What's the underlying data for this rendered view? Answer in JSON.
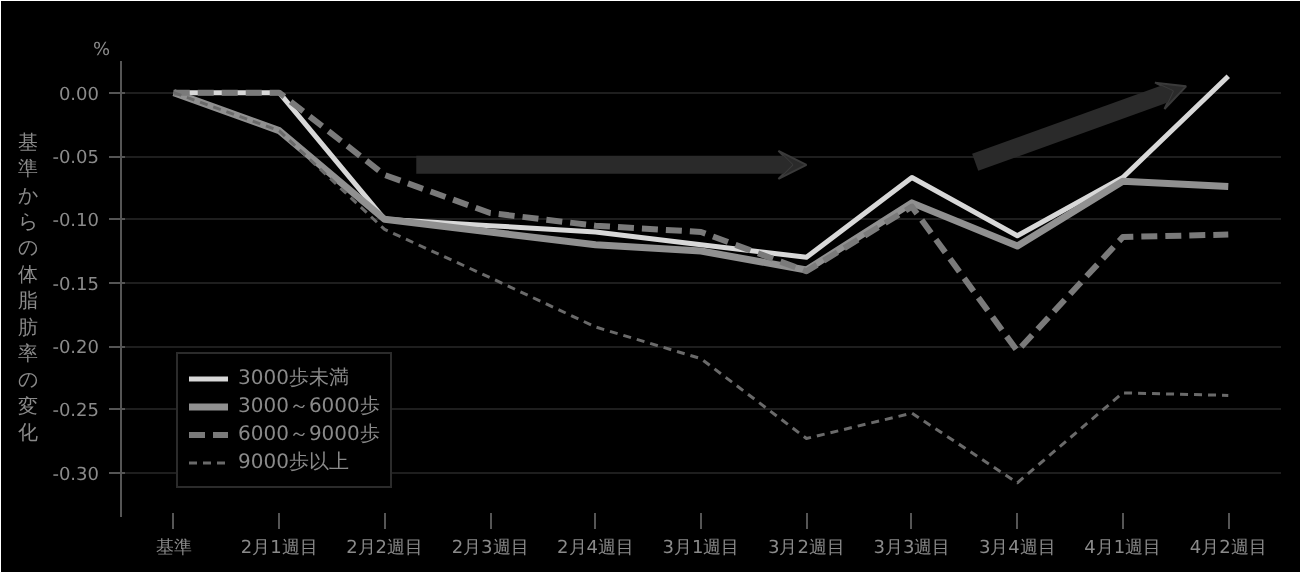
{
  "chart_data": {
    "type": "line",
    "ylabel": "基準からの体脂肪率の変化",
    "annotations": [
      "%"
    ],
    "categories": [
      "基準",
      "2月1週目",
      "2月2週目",
      "2月3週目",
      "2月4週目",
      "3月1週目",
      "3月2週目",
      "3月3週目",
      "3月4週目",
      "4月1週目",
      "4月2週目"
    ],
    "series": [
      {
        "name": "3000歩未満",
        "color": "#d8d8d8",
        "line_style": "solid",
        "values": [
          0,
          0.0,
          -0.1,
          -0.105,
          -0.11,
          -0.12,
          -0.13,
          -0.067,
          -0.113,
          -0.067,
          0.013
        ]
      },
      {
        "name": "3000～6000歩",
        "color": "#909090",
        "line_style": "solid",
        "values": [
          0,
          -0.03,
          -0.1,
          -0.11,
          -0.12,
          -0.125,
          -0.14,
          -0.087,
          -0.121,
          -0.07,
          -0.074
        ]
      },
      {
        "name": "6000～9000歩",
        "color": "#7a7a7a",
        "line_style": "dashed",
        "values": [
          0,
          0.0,
          -0.065,
          -0.095,
          -0.105,
          -0.11,
          -0.141,
          -0.09,
          -0.204,
          -0.114,
          -0.112
        ]
      },
      {
        "name": "9000歩以上",
        "color": "#6a6a6a",
        "line_style": "dotted",
        "values": [
          0,
          -0.03,
          -0.108,
          -0.146,
          -0.185,
          -0.21,
          -0.273,
          -0.253,
          -0.308,
          -0.237,
          -0.239
        ]
      }
    ],
    "ylim": [
      -0.335,
      0.025
    ],
    "yticks": [
      {
        "value": 0,
        "label": "0.00"
      },
      {
        "value": -0.05,
        "label": "-0.05"
      },
      {
        "value": -0.1,
        "label": "-0.10"
      },
      {
        "value": -0.15,
        "label": "-0.15"
      },
      {
        "value": -0.2,
        "label": "-0.20"
      },
      {
        "value": -0.25,
        "label": "-0.25"
      },
      {
        "value": -0.3,
        "label": "-0.30"
      }
    ],
    "grid": "y",
    "legend": "bottom left",
    "marker": "none"
  }
}
